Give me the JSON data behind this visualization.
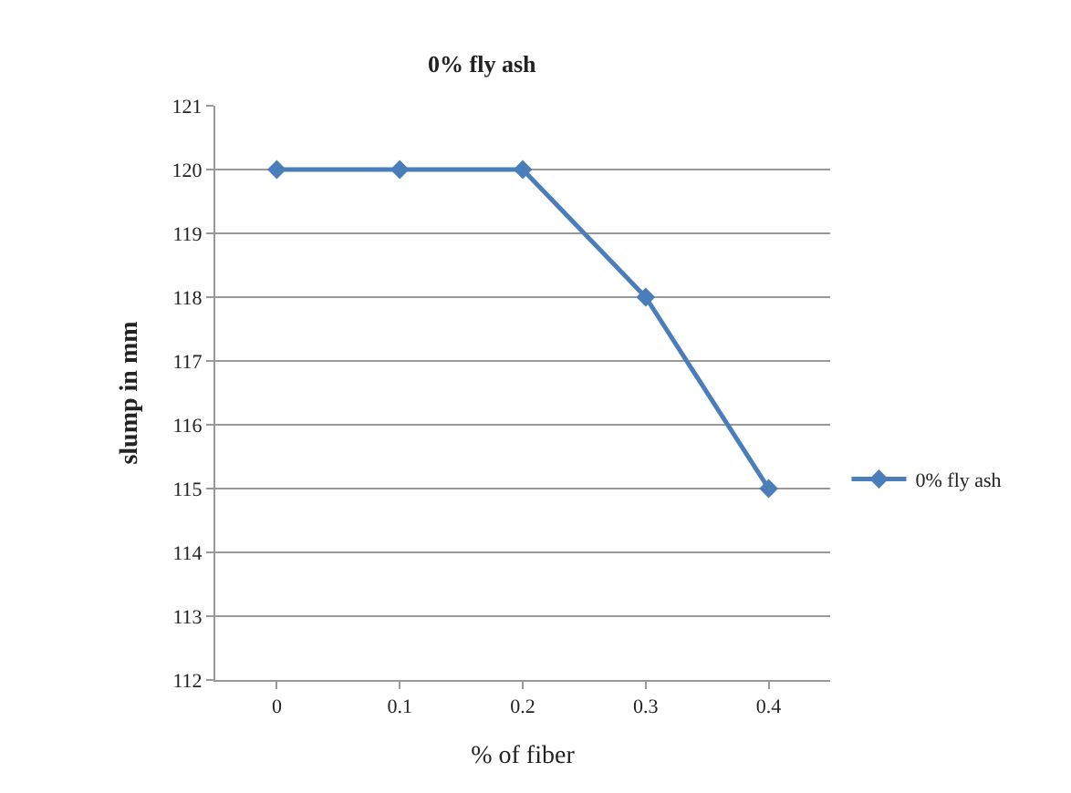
{
  "chart_data": {
    "type": "line",
    "title": "0% fly ash",
    "xlabel": "% of fiber",
    "ylabel": "slump in mm",
    "categories": [
      "0",
      "0.1",
      "0.2",
      "0.3",
      "0.4"
    ],
    "series": [
      {
        "name": "0% fly ash",
        "color": "#4a7ebb",
        "values": [
          120,
          120,
          120,
          118,
          115
        ]
      }
    ],
    "ylim": [
      112,
      121
    ],
    "yticks": [
      112,
      113,
      114,
      115,
      116,
      117,
      118,
      119,
      120,
      121
    ],
    "grid": "y",
    "legend": "right",
    "marker": "diamond",
    "line_style": "solid"
  }
}
